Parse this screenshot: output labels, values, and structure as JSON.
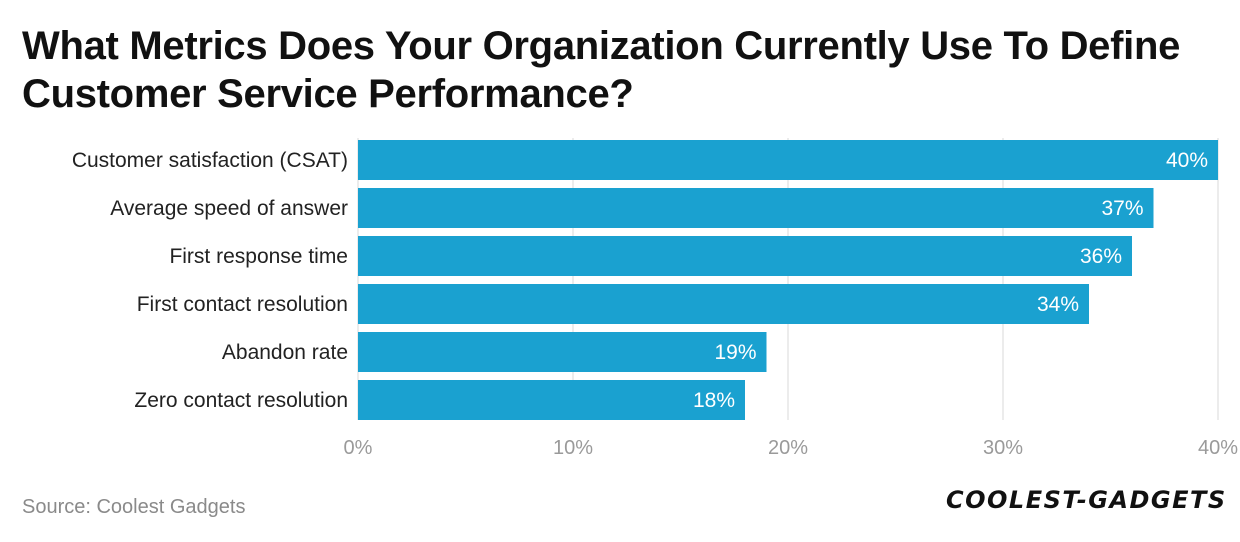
{
  "title": "What Metrics Does Your Organization Currently Use To Define Customer Service Performance?",
  "source": "Source: Coolest Gadgets",
  "logo": "COOLEST-GADGETS",
  "colors": {
    "bar": "#1aa1d0",
    "grid": "#d9d9d9",
    "tick": "#9a9a9a"
  },
  "chart_data": {
    "type": "bar",
    "orientation": "horizontal",
    "categories": [
      "Customer satisfaction (CSAT)",
      "Average speed of answer",
      "First response time",
      "First contact resolution",
      "Abandon rate",
      "Zero contact resolution"
    ],
    "values": [
      40,
      37,
      36,
      34,
      19,
      18
    ],
    "data_labels": [
      "40%",
      "37%",
      "36%",
      "34%",
      "19%",
      "18%"
    ],
    "xlim": [
      0,
      40
    ],
    "xticks": [
      "0%",
      "10%",
      "20%",
      "30%",
      "40%"
    ],
    "xlabel": "",
    "ylabel": "",
    "grid": true
  }
}
